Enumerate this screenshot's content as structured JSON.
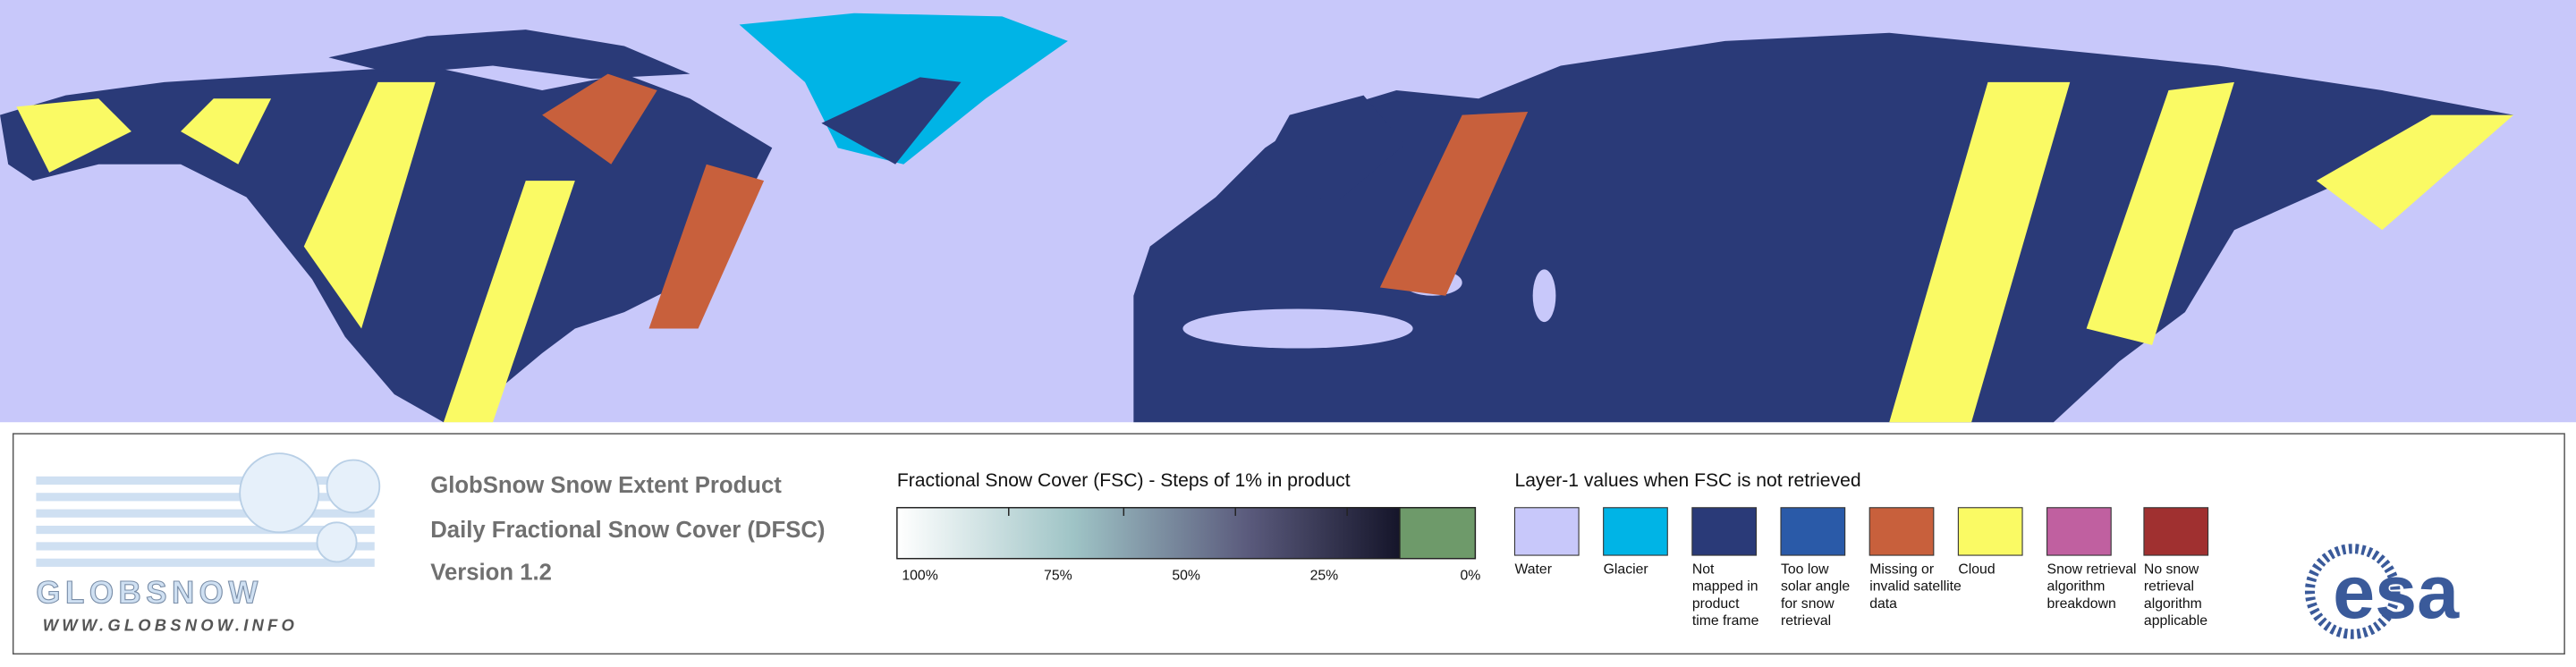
{
  "logo": {
    "name": "GLOBSNOW",
    "url": "WWW.GLOBSNOW.INFO"
  },
  "product": {
    "title": "GlobSnow Snow Extent Product",
    "subtitle": "Daily Fractional Snow Cover (DFSC)",
    "version": "Version 1.2"
  },
  "fsc_scale": {
    "title": "Fractional Snow Cover (FSC) - Steps of 1% in product",
    "labels": [
      "100%",
      "75%",
      "50%",
      "25%",
      "0%"
    ]
  },
  "layer_legend": {
    "title": "Layer-1 values when FSC is not retrieved",
    "items": [
      {
        "label": [
          "Water"
        ],
        "color": "#c8c8fa"
      },
      {
        "label": [
          "Glacier"
        ],
        "color": "#00b4e6"
      },
      {
        "label": [
          "Not",
          "mapped in",
          "product",
          "time frame"
        ],
        "color": "#2a3a78"
      },
      {
        "label": [
          "Too low",
          "solar angle",
          "for snow",
          "retrieval"
        ],
        "color": "#2a5aa8"
      },
      {
        "label": [
          "Missing or",
          "invalid satellite",
          "data"
        ],
        "color": "#c8603c"
      },
      {
        "label": [
          "Cloud"
        ],
        "color": "#fafa64"
      },
      {
        "label": [
          "Snow retrieval",
          "algorithm",
          "breakdown"
        ],
        "color": "#c060a0"
      },
      {
        "label": [
          "No snow",
          "retrieval",
          "algorithm",
          "applicable"
        ],
        "color": "#a03030"
      }
    ]
  },
  "agency": "esa"
}
